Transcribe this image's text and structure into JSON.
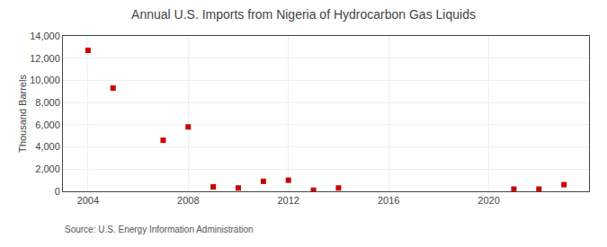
{
  "chart_data": {
    "type": "scatter",
    "title": "Annual U.S. Imports from Nigeria of Hydrocarbon Gas Liquids",
    "ylabel": "Thousand Barrels",
    "annotations": [
      "Source: U.S. Energy Information Administration"
    ],
    "x": [
      2004,
      2005,
      2007,
      2008,
      2009,
      2010,
      2011,
      2012,
      2013,
      2014,
      2021,
      2022,
      2023
    ],
    "values": [
      12700,
      9300,
      4600,
      5800,
      400,
      300,
      900,
      1000,
      100,
      300,
      200,
      200,
      600
    ],
    "color": "#cc0000",
    "marker": "square",
    "xlim": [
      2003,
      2024
    ],
    "xticks": [
      2004,
      2008,
      2012,
      2016,
      2020
    ],
    "ylim": [
      0,
      14000
    ],
    "yticks": [
      0,
      {
        "value": 2000,
        "label": "2,000"
      },
      {
        "value": 4000,
        "label": "4,000"
      },
      {
        "value": 6000,
        "label": "6,000"
      },
      {
        "value": 8000,
        "label": "8,000"
      },
      {
        "value": 10000,
        "label": "10,000"
      },
      {
        "value": 12000,
        "label": "12,000"
      },
      {
        "value": 14000,
        "label": "14,000"
      }
    ],
    "grid": true
  }
}
